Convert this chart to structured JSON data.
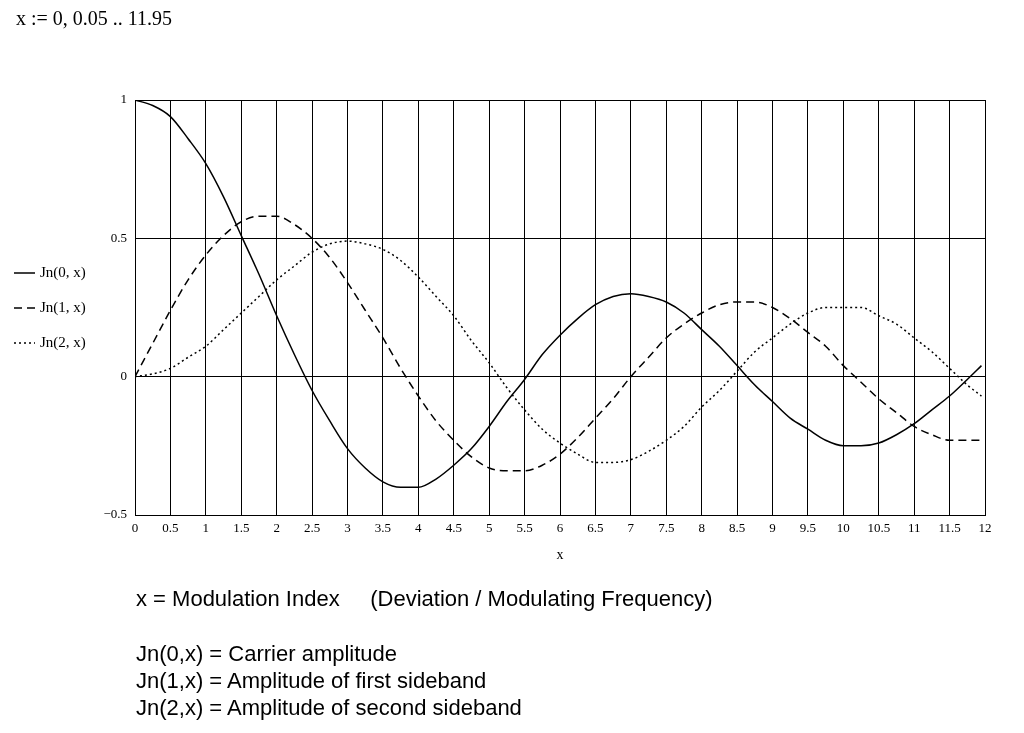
{
  "chart_data": {
    "type": "line",
    "title": "x := 0, 0.05 .. 11.95",
    "xlabel": "x",
    "x": [
      0,
      0.25,
      0.5,
      0.75,
      1,
      1.25,
      1.5,
      1.75,
      2,
      2.25,
      2.5,
      2.75,
      3,
      3.25,
      3.5,
      3.75,
      4,
      4.25,
      4.5,
      4.75,
      5,
      5.25,
      5.5,
      5.75,
      6,
      6.25,
      6.5,
      6.75,
      7,
      7.25,
      7.5,
      7.75,
      8,
      8.25,
      8.5,
      8.75,
      9,
      9.25,
      9.5,
      9.75,
      10,
      10.25,
      10.5,
      10.75,
      11,
      11.25,
      11.5,
      11.75,
      11.95
    ],
    "series": [
      {
        "name": "Jn(0, x)",
        "color": "#000000",
        "line_style": "solid",
        "values": [
          1,
          0.98,
          0.94,
          0.86,
          0.77,
          0.65,
          0.51,
          0.37,
          0.22,
          0.08,
          -0.05,
          -0.16,
          -0.26,
          -0.33,
          -0.38,
          -0.4,
          -0.4,
          -0.37,
          -0.32,
          -0.26,
          -0.18,
          -0.09,
          -0.01,
          0.08,
          0.15,
          0.21,
          0.26,
          0.29,
          0.3,
          0.29,
          0.27,
          0.23,
          0.17,
          0.11,
          0.04,
          -0.03,
          -0.09,
          -0.15,
          -0.19,
          -0.23,
          -0.25,
          -0.25,
          -0.24,
          -0.21,
          -0.17,
          -0.12,
          -0.07,
          -0.01,
          0.04
        ]
      },
      {
        "name": "Jn(1, x)",
        "color": "#000000",
        "line_style": "dashed",
        "values": [
          0,
          0.12,
          0.24,
          0.35,
          0.44,
          0.51,
          0.56,
          0.58,
          0.58,
          0.55,
          0.5,
          0.43,
          0.34,
          0.24,
          0.14,
          0.03,
          -0.07,
          -0.16,
          -0.23,
          -0.29,
          -0.33,
          -0.34,
          -0.34,
          -0.32,
          -0.28,
          -0.22,
          -0.15,
          -0.08,
          0,
          0.07,
          0.14,
          0.19,
          0.23,
          0.26,
          0.27,
          0.27,
          0.25,
          0.21,
          0.16,
          0.11,
          0.04,
          -0.02,
          -0.08,
          -0.13,
          -0.18,
          -0.21,
          -0.23,
          -0.23,
          -0.23
        ]
      },
      {
        "name": "Jn(2, x)",
        "color": "#000000",
        "line_style": "dotted",
        "values": [
          0,
          0.01,
          0.03,
          0.07,
          0.11,
          0.17,
          0.23,
          0.29,
          0.35,
          0.4,
          0.45,
          0.48,
          0.49,
          0.48,
          0.46,
          0.42,
          0.36,
          0.29,
          0.22,
          0.13,
          0.05,
          -0.04,
          -0.12,
          -0.19,
          -0.24,
          -0.28,
          -0.31,
          -0.31,
          -0.3,
          -0.27,
          -0.23,
          -0.18,
          -0.11,
          -0.05,
          0.02,
          0.09,
          0.14,
          0.19,
          0.23,
          0.25,
          0.25,
          0.25,
          0.22,
          0.19,
          0.14,
          0.09,
          0.03,
          -0.03,
          -0.07
        ]
      }
    ],
    "xlim": [
      0,
      12
    ],
    "xticks": [
      0,
      0.5,
      1,
      1.5,
      2,
      2.5,
      3,
      3.5,
      4,
      4.5,
      5,
      5.5,
      6,
      6.5,
      7,
      7.5,
      8,
      8.5,
      9,
      9.5,
      10,
      10.5,
      11,
      11.5,
      12
    ],
    "ylim": [
      -0.5,
      1
    ],
    "yticks": [
      {
        "value": -0.5,
        "label": "−0.5"
      },
      0,
      0.5,
      1
    ],
    "grid": true,
    "legend": "left",
    "annotations": [
      "x = Modulation Index     (Deviation / Modulating Frequency)",
      "Jn(0,x) = Carrier amplitude",
      "Jn(1,x) = Amplitude of first sideband",
      "Jn(2,x) = Amplitude of second sideband"
    ]
  }
}
